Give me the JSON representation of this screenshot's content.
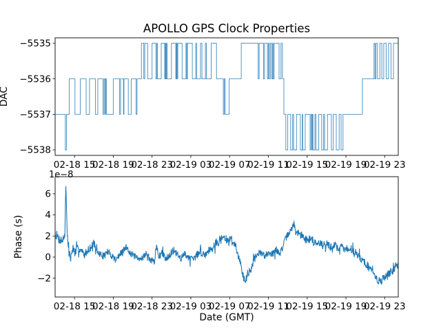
{
  "figure": {
    "title": "APOLLO GPS Clock Properties",
    "background": "#ffffff",
    "line_color": "#1f77b4",
    "spine_color": "#000000"
  },
  "x_axis": {
    "label": "Date (GMT)",
    "tick_t": [
      2,
      6,
      10,
      14,
      18,
      22,
      26,
      30,
      34
    ],
    "tick_labels": [
      "02-18 15",
      "02-18 19",
      "02-18 23",
      "02-19 03",
      "02-19 07",
      "02-19 11",
      "02-19 15",
      "02-19 19",
      "02-19 23"
    ]
  },
  "chart_data": [
    {
      "type": "line",
      "subtype": "step-post",
      "title": "APOLLO GPS Clock Properties",
      "ylabel": "DAC",
      "xlabel": "",
      "legend": "none",
      "grid": false,
      "xlim": [
        0,
        35.4
      ],
      "ylim": [
        -5538.155,
        -5534.845
      ],
      "x_unit_note": "hours since 02-18 13:00 GMT",
      "y_tick_values": [
        -5535,
        -5536,
        -5537,
        -5538
      ],
      "y_tick_labels": [
        "−5535",
        "−5536",
        "−5537",
        "−5538"
      ],
      "steps": [
        [
          0,
          -5537
        ],
        [
          1.05,
          -5538
        ],
        [
          1.17,
          -5537
        ],
        [
          1.45,
          -5536
        ],
        [
          2.05,
          -5537
        ],
        [
          2.6,
          -5536
        ],
        [
          3.2,
          -5537
        ],
        [
          3.55,
          -5536
        ],
        [
          4.15,
          -5537
        ],
        [
          4.4,
          -5536
        ],
        [
          4.95,
          -5537
        ],
        [
          5.05,
          -5536
        ],
        [
          5.15,
          -5537
        ],
        [
          5.2,
          -5536
        ],
        [
          5.3,
          -5537
        ],
        [
          6.0,
          -5536
        ],
        [
          6.65,
          -5537
        ],
        [
          6.75,
          -5536
        ],
        [
          7.05,
          -5537
        ],
        [
          7.1,
          -5536
        ],
        [
          7.55,
          -5537
        ],
        [
          7.85,
          -5536
        ],
        [
          8.35,
          -5537
        ],
        [
          8.45,
          -5536
        ],
        [
          8.9,
          -5535
        ],
        [
          9.15,
          -5536
        ],
        [
          9.25,
          -5535
        ],
        [
          9.55,
          -5536
        ],
        [
          10.0,
          -5535
        ],
        [
          10.4,
          -5536
        ],
        [
          10.5,
          -5535
        ],
        [
          10.55,
          -5536
        ],
        [
          10.95,
          -5535
        ],
        [
          11.3,
          -5536
        ],
        [
          11.37,
          -5535
        ],
        [
          11.42,
          -5536
        ],
        [
          11.5,
          -5535
        ],
        [
          11.55,
          -5536
        ],
        [
          12.0,
          -5535
        ],
        [
          12.45,
          -5536
        ],
        [
          12.52,
          -5535
        ],
        [
          12.58,
          -5536
        ],
        [
          12.65,
          -5535
        ],
        [
          13.1,
          -5536
        ],
        [
          13.5,
          -5535
        ],
        [
          13.58,
          -5536
        ],
        [
          13.65,
          -5535
        ],
        [
          14.15,
          -5536
        ],
        [
          14.5,
          -5535
        ],
        [
          14.6,
          -5536
        ],
        [
          15.0,
          -5535
        ],
        [
          15.15,
          -5536
        ],
        [
          15.5,
          -5535
        ],
        [
          15.6,
          -5536
        ],
        [
          16.1,
          -5535
        ],
        [
          16.65,
          -5536
        ],
        [
          17.35,
          -5537
        ],
        [
          17.45,
          -5536
        ],
        [
          17.55,
          -5537
        ],
        [
          17.95,
          -5536
        ],
        [
          19.2,
          -5535
        ],
        [
          20.95,
          -5536
        ],
        [
          21.05,
          -5535
        ],
        [
          21.5,
          -5536
        ],
        [
          21.6,
          -5535
        ],
        [
          21.9,
          -5536
        ],
        [
          22.0,
          -5535
        ],
        [
          22.1,
          -5536
        ],
        [
          22.2,
          -5535
        ],
        [
          22.35,
          -5536
        ],
        [
          22.45,
          -5535
        ],
        [
          22.5,
          -5536
        ],
        [
          22.6,
          -5535
        ],
        [
          23.1,
          -5536
        ],
        [
          23.3,
          -5535
        ],
        [
          23.45,
          -5536
        ],
        [
          23.6,
          -5537
        ],
        [
          23.8,
          -5538
        ],
        [
          24.0,
          -5537
        ],
        [
          24.3,
          -5538
        ],
        [
          24.5,
          -5537
        ],
        [
          24.6,
          -5538
        ],
        [
          24.9,
          -5537
        ],
        [
          25.3,
          -5538
        ],
        [
          25.5,
          -5537
        ],
        [
          25.55,
          -5538
        ],
        [
          25.8,
          -5537
        ],
        [
          26.3,
          -5538
        ],
        [
          26.4,
          -5537
        ],
        [
          26.5,
          -5538
        ],
        [
          26.55,
          -5537
        ],
        [
          26.6,
          -5538
        ],
        [
          26.8,
          -5537
        ],
        [
          26.9,
          -5538
        ],
        [
          27.2,
          -5537
        ],
        [
          27.5,
          -5538
        ],
        [
          27.7,
          -5537
        ],
        [
          27.8,
          -5538
        ],
        [
          28.1,
          -5537
        ],
        [
          28.5,
          -5538
        ],
        [
          28.7,
          -5537
        ],
        [
          29.0,
          -5538
        ],
        [
          29.3,
          -5537
        ],
        [
          29.5,
          -5538
        ],
        [
          29.7,
          -5537
        ],
        [
          31.7,
          -5536
        ],
        [
          32.9,
          -5535
        ],
        [
          33.0,
          -5536
        ],
        [
          33.1,
          -5535
        ],
        [
          33.25,
          -5536
        ],
        [
          33.5,
          -5535
        ],
        [
          33.7,
          -5536
        ],
        [
          33.9,
          -5535
        ],
        [
          34.15,
          -5536
        ],
        [
          34.4,
          -5535
        ],
        [
          34.65,
          -5536
        ],
        [
          34.9,
          -5535
        ],
        [
          35.4,
          -5535
        ]
      ]
    },
    {
      "type": "line",
      "subtype": "noisy",
      "ylabel": "Phase (s)",
      "xlabel": "Date (GMT)",
      "offset_text": "1e−8",
      "legend": "none",
      "grid": false,
      "xlim": [
        0,
        35.4
      ],
      "ylim": [
        -3.78,
        7.62
      ],
      "y_scale_note": "values in units of 1e-8 s",
      "y_tick_values": [
        6,
        4,
        2,
        0,
        -2
      ],
      "y_tick_labels": [
        "6",
        "4",
        "2",
        "0",
        "−2"
      ],
      "trend": [
        [
          0,
          2.3
        ],
        [
          0.4,
          1.7
        ],
        [
          0.8,
          1.6
        ],
        [
          1.0,
          2.2
        ],
        [
          1.1,
          7.0
        ],
        [
          1.25,
          2.0
        ],
        [
          1.4,
          0.9
        ],
        [
          1.6,
          -0.3
        ],
        [
          1.8,
          0.9
        ],
        [
          2.1,
          0.4
        ],
        [
          2.4,
          0.9
        ],
        [
          2.7,
          0.6
        ],
        [
          3.0,
          0.2
        ],
        [
          3.4,
          0.7
        ],
        [
          3.8,
          1.0
        ],
        [
          4.0,
          1.6
        ],
        [
          4.2,
          0.5
        ],
        [
          4.6,
          0.3
        ],
        [
          5.0,
          0.1
        ],
        [
          5.4,
          0.5
        ],
        [
          5.8,
          0.2
        ],
        [
          6.2,
          -0.2
        ],
        [
          6.6,
          0.1
        ],
        [
          7.0,
          0.6
        ],
        [
          7.4,
          1.0
        ],
        [
          7.8,
          0.3
        ],
        [
          8.2,
          0.1
        ],
        [
          8.6,
          -0.3
        ],
        [
          9.0,
          0.0
        ],
        [
          9.4,
          0.3
        ],
        [
          9.8,
          -0.2
        ],
        [
          10.2,
          -0.5
        ],
        [
          10.5,
          1.1
        ],
        [
          10.7,
          0.0
        ],
        [
          11.0,
          0.4
        ],
        [
          11.4,
          -0.1
        ],
        [
          11.8,
          0.2
        ],
        [
          12.2,
          0.6
        ],
        [
          12.6,
          0.2
        ],
        [
          13.0,
          -0.1
        ],
        [
          13.4,
          0.3
        ],
        [
          13.8,
          0.0
        ],
        [
          14.2,
          -0.3
        ],
        [
          14.6,
          0.2
        ],
        [
          15.0,
          0.5
        ],
        [
          15.4,
          0.2
        ],
        [
          15.8,
          0.6
        ],
        [
          16.2,
          1.0
        ],
        [
          16.6,
          1.3
        ],
        [
          17.0,
          1.6
        ],
        [
          17.4,
          1.9
        ],
        [
          17.8,
          1.5
        ],
        [
          18.2,
          1.8
        ],
        [
          18.6,
          1.0
        ],
        [
          19.0,
          0.0
        ],
        [
          19.3,
          -1.5
        ],
        [
          19.6,
          -2.2
        ],
        [
          19.9,
          -1.8
        ],
        [
          20.2,
          -1.0
        ],
        [
          20.5,
          -0.3
        ],
        [
          20.8,
          0.2
        ],
        [
          21.2,
          0.4
        ],
        [
          21.6,
          0.1
        ],
        [
          22.0,
          0.5
        ],
        [
          22.4,
          0.3
        ],
        [
          22.8,
          0.6
        ],
        [
          23.2,
          0.4
        ],
        [
          23.5,
          1.0
        ],
        [
          23.8,
          1.8
        ],
        [
          24.1,
          2.3
        ],
        [
          24.4,
          2.5
        ],
        [
          24.6,
          3.3
        ],
        [
          24.8,
          2.4
        ],
        [
          25.2,
          2.2
        ],
        [
          25.6,
          1.9
        ],
        [
          26.0,
          1.6
        ],
        [
          26.4,
          1.8
        ],
        [
          26.8,
          1.3
        ],
        [
          27.2,
          1.5
        ],
        [
          27.6,
          1.1
        ],
        [
          28.0,
          1.3
        ],
        [
          28.4,
          0.9
        ],
        [
          28.8,
          1.2
        ],
        [
          29.2,
          0.8
        ],
        [
          29.6,
          1.0
        ],
        [
          30.0,
          0.7
        ],
        [
          30.4,
          0.9
        ],
        [
          30.8,
          0.5
        ],
        [
          31.2,
          0.3
        ],
        [
          31.6,
          -0.2
        ],
        [
          32.0,
          -0.6
        ],
        [
          32.4,
          -1.0
        ],
        [
          32.8,
          -1.6
        ],
        [
          33.2,
          -2.1
        ],
        [
          33.6,
          -2.3
        ],
        [
          34.0,
          -1.9
        ],
        [
          34.4,
          -1.6
        ],
        [
          34.8,
          -1.3
        ],
        [
          35.1,
          -1.0
        ],
        [
          35.4,
          -0.8
        ]
      ],
      "noise_amplitude_keypoints": [
        [
          0,
          0.45
        ],
        [
          1.5,
          0.5
        ],
        [
          3,
          0.35
        ],
        [
          8,
          0.32
        ],
        [
          15,
          0.35
        ],
        [
          17,
          0.45
        ],
        [
          19,
          0.3
        ],
        [
          21,
          0.35
        ],
        [
          24,
          0.3
        ],
        [
          26,
          0.4
        ],
        [
          30,
          0.35
        ],
        [
          33,
          0.42
        ],
        [
          35.4,
          0.3
        ]
      ],
      "points_per_hour": 28
    }
  ]
}
